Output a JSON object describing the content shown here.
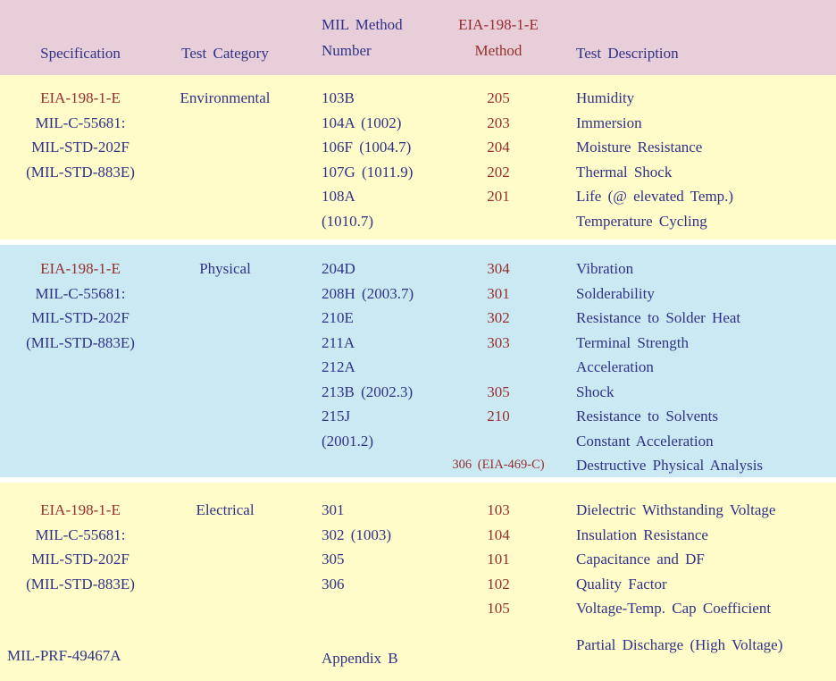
{
  "colors": {
    "navy": "#2f3287",
    "red": "#962f2f",
    "header_pink": "#e8ced8",
    "section_yellow": "#fffcca",
    "section_blue": "#cbe9f2",
    "gap_white": "#ffffff"
  },
  "header": {
    "columns": {
      "specification": "Specification",
      "test_category": "Test Category",
      "mil_method_line1": "MIL Method",
      "mil_method_line2": "Number",
      "eia_method_line1": "EIA-198-1-E",
      "eia_method_line2": "Method",
      "test_description": "Test Description"
    }
  },
  "sections": [
    {
      "id": "environmental",
      "bg": "yellow",
      "spec_lines": [
        "EIA-198-1-E",
        "MIL-C-55681:",
        "MIL-STD-202F",
        "(MIL-STD-883E)"
      ],
      "category": "Environmental",
      "rows": [
        {
          "mil": "103B",
          "eia": "205",
          "desc": "Humidity"
        },
        {
          "mil": "104A (1002)",
          "eia": "203",
          "desc": "Immersion"
        },
        {
          "mil": "106F (1004.7)",
          "eia": "204",
          "desc": "Moisture Resistance"
        },
        {
          "mil": "107G (1011.9)",
          "eia": "202",
          "desc": "Thermal Shock"
        },
        {
          "mil": "108A",
          "eia": "201",
          "desc": "Life (@ elevated Temp.)"
        },
        {
          "mil": "(1010.7)",
          "eia": "",
          "desc": "Temperature Cycling"
        }
      ]
    },
    {
      "id": "physical",
      "bg": "blue",
      "spec_lines": [
        "EIA-198-1-E",
        "MIL-C-55681:",
        "MIL-STD-202F",
        "(MIL-STD-883E)"
      ],
      "category": "Physical",
      "rows": [
        {
          "mil": "204D",
          "eia": "304",
          "desc": "Vibration"
        },
        {
          "mil": "208H (2003.7)",
          "eia": "301",
          "desc": "Solderability"
        },
        {
          "mil": "210E",
          "eia": "302",
          "desc": "Resistance to Solder Heat"
        },
        {
          "mil": "211A",
          "eia": "303",
          "desc": "Terminal Strength"
        },
        {
          "mil": "212A",
          "eia": "",
          "desc": "Acceleration"
        },
        {
          "mil": "213B (2002.3)",
          "eia": "305",
          "desc": "Shock"
        },
        {
          "mil": "215J",
          "eia": "210",
          "desc": "Resistance to Solvents"
        },
        {
          "mil": "(2001.2)",
          "eia": "",
          "desc": "Constant Acceleration"
        },
        {
          "mil": "",
          "eia": "306 (EIA-469-C)",
          "desc": "Destructive Physical Analysis"
        }
      ]
    },
    {
      "id": "electrical",
      "bg": "yellow",
      "spec_lines": [
        "EIA-198-1-E",
        "MIL-C-55681:",
        "MIL-STD-202F",
        "(MIL-STD-883E)"
      ],
      "category": "Electrical",
      "rows": [
        {
          "mil": "301",
          "eia": "103",
          "desc": "Dielectric Withstanding Voltage"
        },
        {
          "mil": "302 (1003)",
          "eia": "104",
          "desc": "Insulation Resistance"
        },
        {
          "mil": "305",
          "eia": "101",
          "desc": "Capacitance and DF"
        },
        {
          "mil": "306",
          "eia": "102",
          "desc": "Quality Factor"
        },
        {
          "mil": "",
          "eia": "105",
          "desc": "Voltage-Temp. Cap Coefficient"
        }
      ]
    }
  ],
  "footer_row": {
    "spec": "MIL-PRF-49467A",
    "mil": "Appendix B",
    "desc": "Partial Discharge (High Voltage)"
  }
}
